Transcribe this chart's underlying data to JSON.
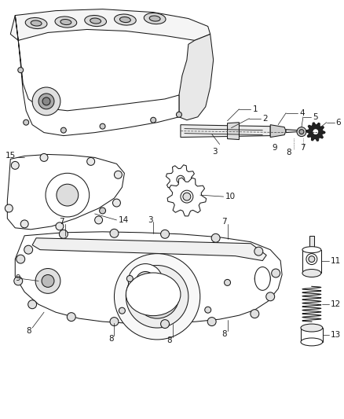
{
  "bg_color": "#ffffff",
  "line_color": "#1a1a1a",
  "figsize": [
    4.38,
    5.33
  ],
  "dpi": 100,
  "label_fs": 7.5,
  "lw": 0.75
}
